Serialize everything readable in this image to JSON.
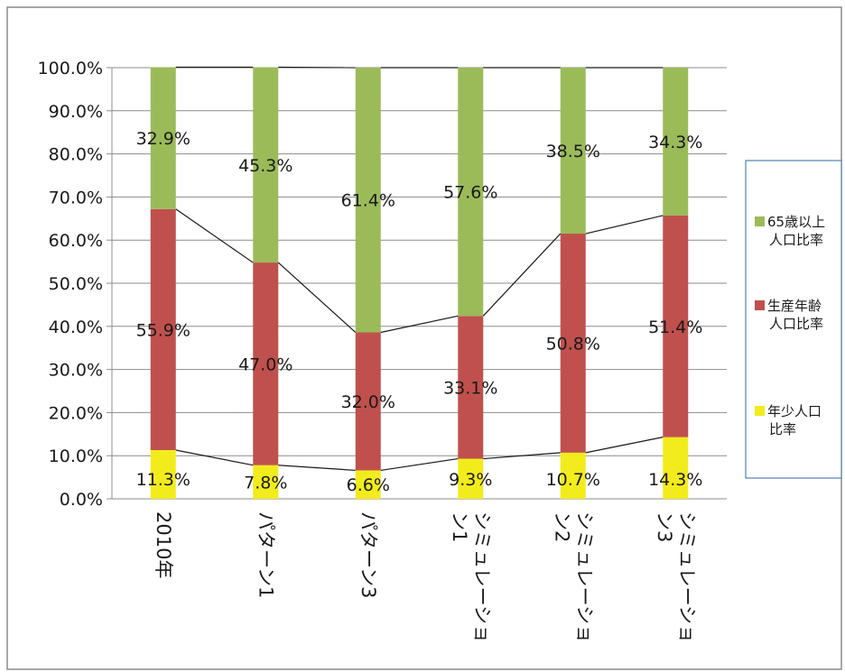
{
  "chart_data": {
    "type": "bar",
    "stacked": true,
    "categories": [
      "2010年",
      "パターン1",
      "パターン3",
      "シミュレーション1",
      "シミュレーション2",
      "シミュレーション3"
    ],
    "category_lines": [
      [
        "2010年"
      ],
      [
        "パターン1"
      ],
      [
        "パターン3"
      ],
      [
        "シミュレーショ",
        "ン1"
      ],
      [
        "シミュレーショ",
        "ン2"
      ],
      [
        "シミュレーショ",
        "ン3"
      ]
    ],
    "series": [
      {
        "name": "年少人口比率",
        "legend_lines": [
          "年少人口",
          "比率"
        ],
        "color": "#f2ec1c",
        "values": [
          11.3,
          7.8,
          6.6,
          9.3,
          10.7,
          14.3
        ],
        "labels": [
          "11.3%",
          "7.8%",
          "6.6%",
          "9.3%",
          "10.7%",
          "14.3%"
        ]
      },
      {
        "name": "生産年齢人口比率",
        "legend_lines": [
          "生産年齢",
          "人口比率"
        ],
        "color": "#c0504d",
        "values": [
          55.9,
          47.0,
          32.0,
          33.1,
          50.8,
          51.4
        ],
        "labels": [
          "55.9%",
          "47.0%",
          "32.0%",
          "33.1%",
          "50.8%",
          "51.4%"
        ]
      },
      {
        "name": "65歳以上人口比率",
        "legend_lines": [
          "65歳以上",
          "人口比率"
        ],
        "color": "#9bbb59",
        "values": [
          32.9,
          45.3,
          61.4,
          57.6,
          38.5,
          34.3
        ],
        "labels": [
          "32.9%",
          "45.3%",
          "61.4%",
          "57.6%",
          "38.5%",
          "34.3%"
        ]
      }
    ],
    "yticks": [
      "0.0%",
      "10.0%",
      "20.0%",
      "30.0%",
      "40.0%",
      "50.0%",
      "60.0%",
      "70.0%",
      "80.0%",
      "90.0%",
      "100.0%"
    ],
    "ylim": [
      0,
      100
    ],
    "grid": true,
    "series_lines": true,
    "legend_position": "right"
  }
}
